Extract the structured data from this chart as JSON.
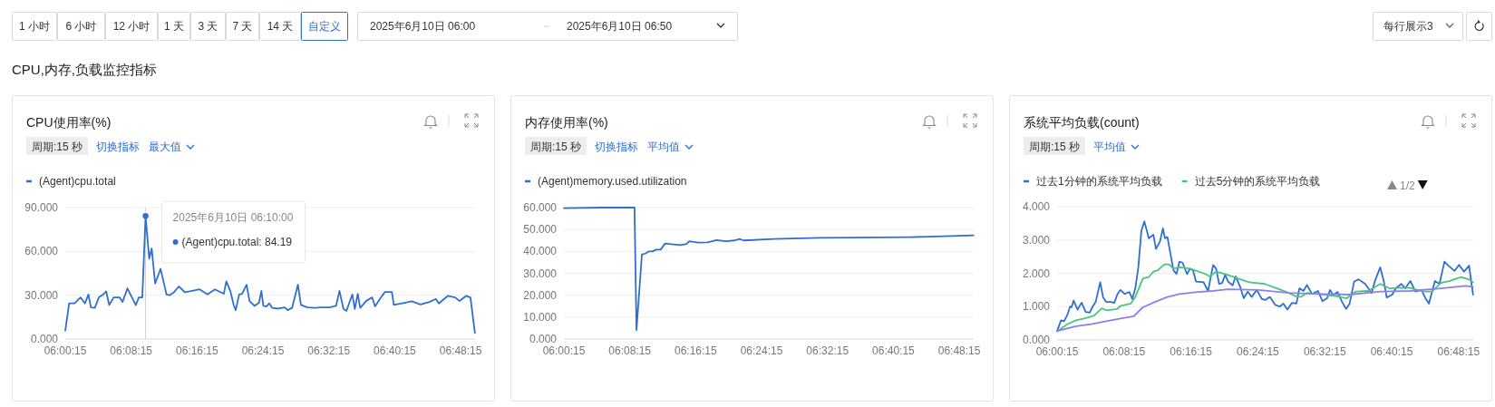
{
  "chart_data": [
    {
      "type": "other",
      "title": "CPU,内存,负载监控指标",
      "annotations": [
        "1 小时",
        "6 小时",
        "12 小时",
        "1 天",
        "3 天",
        "7 天",
        "14 天",
        "自定义",
        "2025年6月10日 06:00",
        "2025年6月10日 06:50",
        "每行展示3"
      ]
    },
    {
      "type": "line",
      "title": "CPU使用率(%)",
      "legend": "top left",
      "grid": "y",
      "marker": "none",
      "line_style": "solid",
      "xlim": [
        6.004167,
        6.833333
      ],
      "xticks": [
        {
          "value": 6.004167,
          "label": "06:00:15"
        },
        {
          "value": 6.1375,
          "label": "06:08:15"
        },
        {
          "value": 6.270833,
          "label": "06:16:15"
        },
        {
          "value": 6.404167,
          "label": "06:24:15"
        },
        {
          "value": 6.5375,
          "label": "06:32:15"
        },
        {
          "value": 6.670833,
          "label": "06:40:15"
        },
        {
          "value": 6.804167,
          "label": "06:48:15"
        }
      ],
      "ylim": [
        0,
        90
      ],
      "yticks": [
        {
          "value": 0,
          "label": "0.000"
        },
        {
          "value": 30,
          "label": "30.000"
        },
        {
          "value": 60,
          "label": "60.000"
        },
        {
          "value": 90,
          "label": "90.000"
        }
      ],
      "annotations": [
        "周期:15 秒",
        "切换指标",
        "最大值",
        "2025年6月10日 06:10:00",
        "(Agent)cpu.total:  84.19"
      ],
      "ref_lines": [
        {
          "axis": "x",
          "value": 6.166667,
          "color": "#cfcfcf"
        }
      ],
      "series": [
        {
          "name": "(Agent)cpu.total",
          "color": "#2f6fcf",
          "x": [
            6.00417,
            6.012,
            6.023,
            6.035,
            6.044,
            6.051,
            6.056,
            6.064,
            6.072,
            6.081,
            6.087,
            6.093,
            6.102,
            6.114,
            6.12,
            6.13,
            6.139,
            6.147,
            6.153,
            6.16,
            6.166667,
            6.174,
            6.179,
            6.186,
            6.197,
            6.209,
            6.215,
            6.224,
            6.234,
            6.246,
            6.261,
            6.276,
            6.292,
            6.307,
            6.319,
            6.325,
            6.33,
            6.338,
            6.345,
            6.349,
            6.356,
            6.362,
            6.371,
            6.377,
            6.387,
            6.396,
            6.401,
            6.405,
            6.411,
            6.417,
            6.423,
            6.435,
            6.448,
            6.454,
            6.463,
            6.475,
            6.481,
            6.494,
            6.509,
            6.521,
            6.539,
            6.552,
            6.559,
            6.567,
            6.573,
            6.585,
            6.59,
            6.596,
            6.601,
            6.613,
            6.625,
            6.631,
            6.643,
            6.651,
            6.665,
            6.669,
            6.686,
            6.705,
            6.723,
            6.741,
            6.754,
            6.76,
            6.778,
            6.793,
            6.802,
            6.815,
            6.824,
            6.833
          ],
          "values": [
            5.8,
            24.4,
            24.4,
            28.5,
            24.4,
            30.5,
            21.7,
            21.3,
            28.5,
            30.5,
            32.6,
            23.3,
            28.5,
            28.5,
            25.4,
            34.7,
            28.5,
            23.3,
            28.5,
            28.5,
            84.19,
            55,
            62,
            38,
            48,
            30.5,
            30,
            32,
            36,
            32,
            33,
            34,
            30.5,
            34,
            32,
            31,
            39.5,
            33,
            23.3,
            19.8,
            30.5,
            31,
            37.2,
            26,
            22.7,
            24.8,
            33,
            22.7,
            22.3,
            24.4,
            21.3,
            20.8,
            21.7,
            19.8,
            21.3,
            37.2,
            23.3,
            21.7,
            21.3,
            21.7,
            21.7,
            22.7,
            33,
            20.6,
            19.2,
            30.5,
            20.6,
            31,
            21.3,
            26,
            28.5,
            22.3,
            28.5,
            32.2,
            32.2,
            23.3,
            24.4,
            25.8,
            23.7,
            25.4,
            27.5,
            24.4,
            29.5,
            28.5,
            26,
            29.5,
            28.5,
            4.1
          ]
        }
      ]
    },
    {
      "type": "line",
      "title": "内存使用率(%)",
      "legend": "top left",
      "grid": "y",
      "marker": "none",
      "line_style": "solid",
      "xlim": [
        6.004167,
        6.833333
      ],
      "xticks": [
        {
          "value": 6.004167,
          "label": "06:00:15"
        },
        {
          "value": 6.1375,
          "label": "06:08:15"
        },
        {
          "value": 6.270833,
          "label": "06:16:15"
        },
        {
          "value": 6.404167,
          "label": "06:24:15"
        },
        {
          "value": 6.5375,
          "label": "06:32:15"
        },
        {
          "value": 6.670833,
          "label": "06:40:15"
        },
        {
          "value": 6.804167,
          "label": "06:48:15"
        }
      ],
      "ylim": [
        0,
        60
      ],
      "yticks": [
        {
          "value": 0,
          "label": "0.000"
        },
        {
          "value": 10,
          "label": "10.000"
        },
        {
          "value": 20,
          "label": "20.000"
        },
        {
          "value": 30,
          "label": "30.000"
        },
        {
          "value": 40,
          "label": "40.000"
        },
        {
          "value": 50,
          "label": "50.000"
        },
        {
          "value": 60,
          "label": "60.000"
        }
      ],
      "annotations": [
        "周期:15 秒",
        "切换指标",
        "平均值"
      ],
      "series": [
        {
          "name": "(Agent)memory.used.utilization",
          "color": "#2f6fcf",
          "x": [
            6.00417,
            6.081,
            6.147,
            6.151,
            6.162,
            6.169,
            6.176,
            6.183,
            6.191,
            6.2,
            6.209,
            6.221,
            6.24,
            6.252,
            6.258,
            6.276,
            6.295,
            6.313,
            6.331,
            6.35,
            6.359,
            6.368,
            6.429,
            6.521,
            6.705,
            6.833
          ],
          "values": [
            59.7,
            60,
            60,
            4.1,
            38.6,
            39,
            40,
            40,
            40.8,
            40.8,
            43.6,
            43.3,
            42.9,
            43.4,
            44.6,
            44,
            44.1,
            45.2,
            44.6,
            45,
            45.7,
            45,
            45.7,
            46.2,
            46.5,
            47.3
          ]
        }
      ]
    },
    {
      "type": "line",
      "title": "系统平均负载(count)",
      "legend": "top left",
      "grid": "y",
      "marker": "none",
      "line_style": "solid",
      "xlim": [
        6.004167,
        6.833333
      ],
      "xticks": [
        {
          "value": 6.004167,
          "label": "06:00:15"
        },
        {
          "value": 6.1375,
          "label": "06:08:15"
        },
        {
          "value": 6.270833,
          "label": "06:16:15"
        },
        {
          "value": 6.404167,
          "label": "06:24:15"
        },
        {
          "value": 6.5375,
          "label": "06:32:15"
        },
        {
          "value": 6.670833,
          "label": "06:40:15"
        },
        {
          "value": 6.804167,
          "label": "06:48:15"
        }
      ],
      "ylim": [
        0,
        4
      ],
      "yticks": [
        {
          "value": 0,
          "label": "0.000"
        },
        {
          "value": 1,
          "label": "1.000"
        },
        {
          "value": 2,
          "label": "2.000"
        },
        {
          "value": 3,
          "label": "3.000"
        },
        {
          "value": 4,
          "label": "4.000"
        }
      ],
      "annotations": [
        "周期:15 秒",
        "平均值",
        "1/2"
      ],
      "series": [
        {
          "name": "过去1分钟的系统平均负载",
          "color": "#2f6fcf",
          "x": [
            6.00417,
            6.012,
            6.018,
            6.024,
            6.03,
            6.033,
            6.037,
            6.045,
            6.053,
            6.061,
            6.069,
            6.075,
            6.081,
            6.09,
            6.096,
            6.102,
            6.112,
            6.118,
            6.124,
            6.13,
            6.139,
            6.148,
            6.154,
            6.16,
            6.166,
            6.172,
            6.178,
            6.187,
            6.196,
            6.201,
            6.209,
            6.215,
            6.219,
            6.224,
            6.23,
            6.236,
            6.242,
            6.248,
            6.254,
            6.263,
            6.269,
            6.275,
            6.281,
            6.296,
            6.305,
            6.315,
            6.321,
            6.327,
            6.333,
            6.339,
            6.345,
            6.354,
            6.36,
            6.369,
            6.376,
            6.384,
            6.392,
            6.402,
            6.412,
            6.419,
            6.428,
            6.439,
            6.448,
            6.455,
            6.463,
            6.472,
            6.481,
            6.487,
            6.495,
            6.502,
            6.512,
            6.524,
            6.533,
            6.542,
            6.548,
            6.554,
            6.563,
            6.572,
            6.58,
            6.587,
            6.596,
            6.605,
            6.618,
            6.631,
            6.637,
            6.648,
            6.655,
            6.661,
            6.672,
            6.679,
            6.69,
            6.698,
            6.708,
            6.718,
            6.73,
            6.739,
            6.745,
            6.757,
            6.766,
            6.776,
            6.784,
            6.796,
            6.805,
            6.815,
            6.825,
            6.833
          ],
          "values": [
            0.27,
            0.59,
            0.56,
            0.73,
            1.0,
            0.98,
            1.18,
            0.91,
            1.12,
            0.84,
            0.82,
            1.0,
            1.14,
            1.73,
            1.27,
            1.14,
            1.14,
            1.11,
            1.36,
            1.5,
            1.38,
            1.44,
            1.23,
            1.55,
            2.18,
            3.27,
            3.56,
            3.05,
            3.16,
            2.73,
            2.95,
            3.35,
            3.05,
            3.09,
            2.59,
            2.09,
            1.98,
            2.35,
            2.32,
            1.98,
            2.14,
            2.09,
            1.75,
            1.73,
            1.47,
            2.25,
            2.14,
            1.68,
            1.71,
            1.95,
            1.75,
            1.64,
            1.91,
            1.59,
            1.25,
            1.45,
            1.29,
            1.5,
            1.23,
            1.2,
            1.29,
            1.05,
            1.0,
            1.09,
            0.91,
            1.11,
            1.09,
            1.55,
            1.47,
            1.65,
            1.38,
            1.47,
            1.16,
            1.25,
            1.5,
            1.35,
            1.44,
            1.14,
            0.93,
            1.09,
            1.75,
            1.82,
            1.68,
            1.41,
            1.75,
            2.18,
            1.77,
            1.27,
            1.36,
            1.55,
            1.68,
            1.55,
            1.77,
            1.45,
            1.5,
            1.23,
            1.09,
            1.77,
            1.68,
            2.35,
            2.23,
            2.07,
            2.25,
            2.05,
            2.23,
            1.36
          ]
        },
        {
          "name": "过去5分钟的系统平均负载",
          "color": "#4bc57b",
          "x": [
            6.00417,
            6.024,
            6.042,
            6.06,
            6.078,
            6.093,
            6.102,
            6.124,
            6.13,
            6.151,
            6.16,
            6.175,
            6.187,
            6.196,
            6.205,
            6.218,
            6.227,
            6.236,
            6.248,
            6.269,
            6.296,
            6.308,
            6.321,
            6.345,
            6.369,
            6.387,
            6.418,
            6.442,
            6.466,
            6.478,
            6.49,
            6.502,
            6.527,
            6.557,
            6.581,
            6.599,
            6.624,
            6.648,
            6.666,
            6.69,
            6.708,
            6.733,
            6.751,
            6.769,
            6.787,
            6.809,
            6.824,
            6.833
          ],
          "values": [
            0.25,
            0.47,
            0.59,
            0.65,
            0.73,
            0.95,
            0.89,
            0.93,
            1.02,
            1.09,
            1.29,
            1.84,
            1.89,
            2.05,
            2.09,
            2.27,
            2.27,
            2.14,
            2.18,
            2.14,
            2.0,
            1.91,
            2.05,
            1.95,
            1.82,
            1.73,
            1.68,
            1.55,
            1.41,
            1.32,
            1.29,
            1.41,
            1.38,
            1.32,
            1.25,
            1.45,
            1.47,
            1.68,
            1.55,
            1.57,
            1.56,
            1.45,
            1.45,
            1.71,
            1.77,
            1.89,
            1.82,
            1.73
          ]
        },
        {
          "color": "#8c7ff0",
          "x": [
            6.00417,
            6.042,
            6.072,
            6.102,
            6.133,
            6.157,
            6.175,
            6.199,
            6.224,
            6.248,
            6.284,
            6.315,
            6.345,
            6.405,
            6.466,
            6.527,
            6.587,
            6.648,
            6.708,
            6.769,
            6.818,
            6.833
          ],
          "values": [
            0.27,
            0.41,
            0.47,
            0.56,
            0.65,
            0.71,
            0.98,
            1.14,
            1.29,
            1.38,
            1.44,
            1.47,
            1.52,
            1.5,
            1.41,
            1.38,
            1.36,
            1.45,
            1.47,
            1.55,
            1.62,
            1.59
          ]
        }
      ]
    }
  ]
}
